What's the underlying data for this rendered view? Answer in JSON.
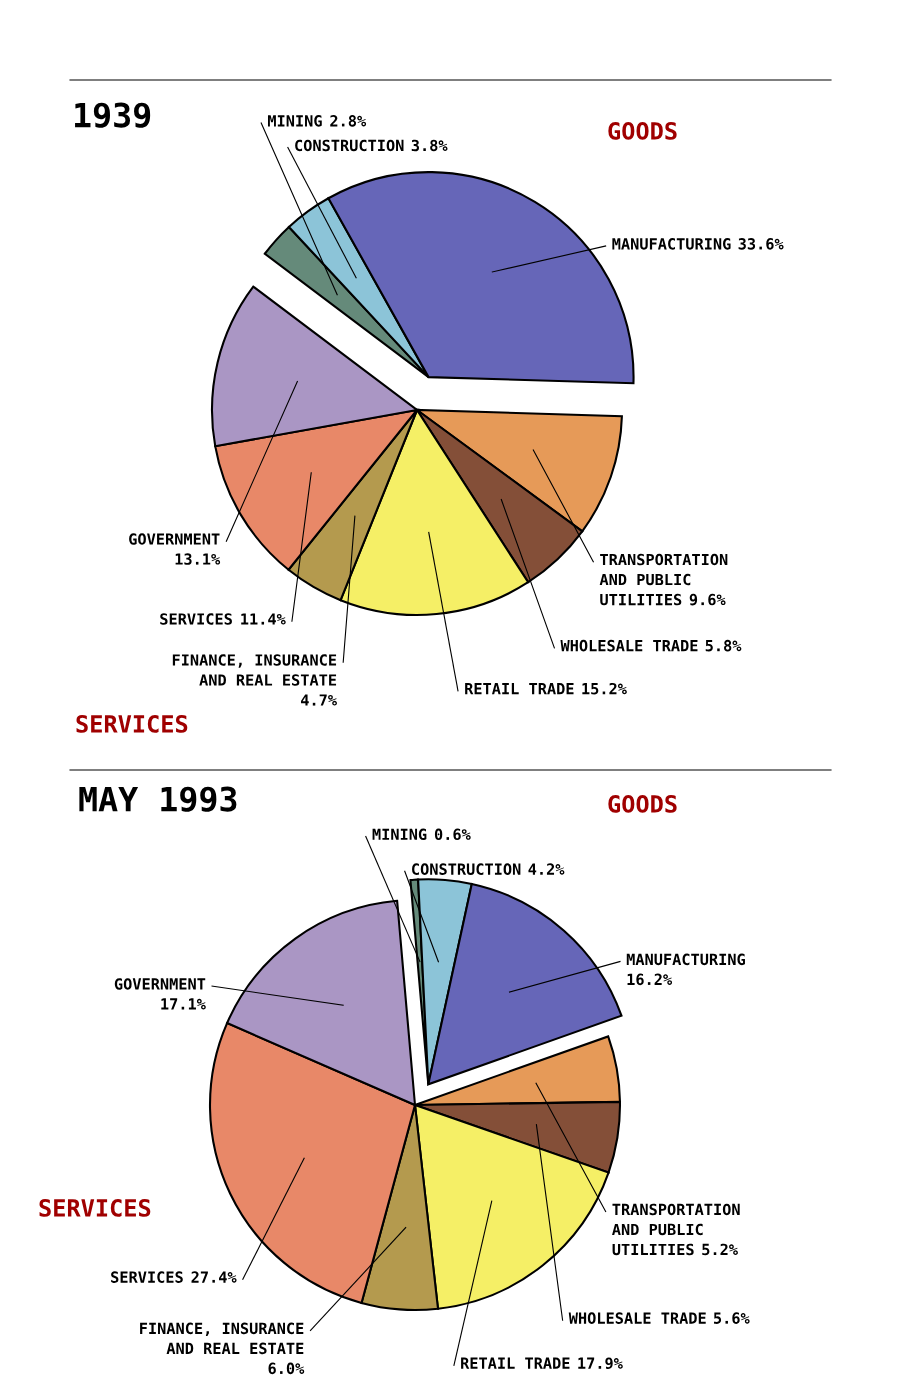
{
  "chart_data": [
    {
      "type": "pie",
      "title": "1939",
      "categories": [
        "MINING",
        "CONSTRUCTION",
        "MANUFACTURING",
        "TRANSPORTATION\nAND PUBLIC\nUTILITIES",
        "WHOLESALE TRADE",
        "RETAIL TRADE",
        "FINANCE, INSURANCE\nAND REAL ESTATE",
        "SERVICES",
        "GOVERNMENT"
      ],
      "values": [
        2.8,
        3.8,
        33.6,
        9.6,
        5.8,
        15.2,
        4.7,
        11.4,
        13.1
      ],
      "value_labels": [
        "2.8%",
        "3.8%",
        "33.6%",
        "9.6%",
        "5.8%",
        "15.2%",
        "4.7%",
        "11.4%",
        "13.1%"
      ],
      "colors": [
        "#658a7a",
        "#8cc4d8",
        "#6666b8",
        "#e69a58",
        "#844f38",
        "#f5ef66",
        "#b49a4e",
        "#e88868",
        "#aa96c4"
      ],
      "annotations": [
        "GOODS",
        "SERVICES"
      ]
    },
    {
      "type": "pie",
      "title": "MAY 1993",
      "categories": [
        "MINING",
        "CONSTRUCTION",
        "MANUFACTURING",
        "TRANSPORTATION\nAND PUBLIC\nUTILITIES",
        "WHOLESALE TRADE",
        "RETAIL TRADE",
        "FINANCE, INSURANCE\nAND REAL ESTATE",
        "SERVICES",
        "GOVERNMENT"
      ],
      "values": [
        0.6,
        4.2,
        16.2,
        5.2,
        5.6,
        17.9,
        6.0,
        27.4,
        17.1
      ],
      "value_labels": [
        "0.6%",
        "4.2%",
        "16.2%",
        "5.2%",
        "5.6%",
        "17.9%",
        "6.0%",
        "27.4%",
        "17.1%"
      ],
      "colors": [
        "#658a7a",
        "#8cc4d8",
        "#6666b8",
        "#e69a58",
        "#844f38",
        "#f5ef66",
        "#b49a4e",
        "#e88868",
        "#aa96c4"
      ],
      "annotations": [
        "GOODS",
        "SERVICES"
      ]
    }
  ]
}
